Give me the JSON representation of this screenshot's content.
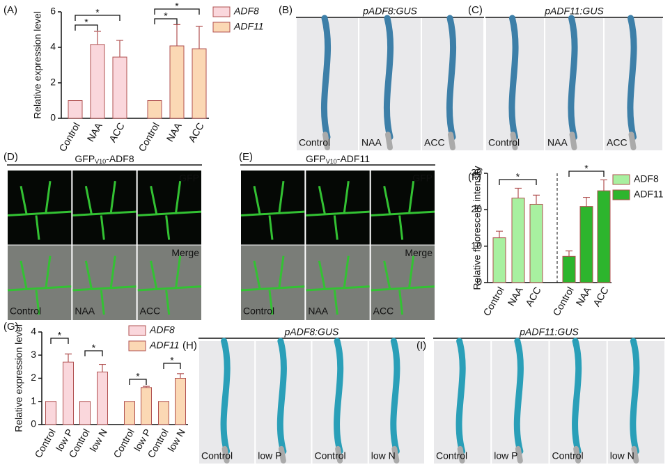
{
  "chart_data": [
    {
      "type": "bar",
      "panel": "(A)",
      "ylabel": "Relative expression level",
      "categories": [
        "Control",
        "NAA",
        "ACC",
        "Control",
        "NAA",
        "ACC"
      ],
      "ylim": [
        0,
        6
      ],
      "yticks": [
        0,
        2,
        4,
        6
      ],
      "series": [
        {
          "name": "ADF8",
          "color": "#fad7dc",
          "values": [
            1,
            4.16,
            3.45,
            null,
            null,
            null
          ],
          "errors": [
            0,
            0.74,
            0.94,
            null,
            null,
            null
          ]
        },
        {
          "name": "ADF11",
          "color": "#fbd8b4",
          "values": [
            null,
            null,
            null,
            1,
            4.08,
            3.92
          ],
          "errors": [
            null,
            null,
            null,
            0,
            1.2,
            1.26
          ]
        }
      ],
      "annotations": [
        "*",
        "*",
        "*",
        "*"
      ]
    },
    {
      "type": "bar",
      "panel": "(F)",
      "ylabel": "Relative fluorescent intensity",
      "categories": [
        "Control",
        "NAA",
        "ACC",
        "Control",
        "NAA",
        "ACC"
      ],
      "ylim": [
        0,
        30
      ],
      "yticks": [
        0,
        10,
        20,
        30
      ],
      "series": [
        {
          "name": "ADF8",
          "color": "#a8f0a0",
          "values": [
            12.3,
            23.2,
            21.5,
            null,
            null,
            null
          ],
          "errors": [
            1.8,
            2.7,
            2.5,
            null,
            null,
            null
          ]
        },
        {
          "name": "ADF11",
          "color": "#2db52d",
          "values": [
            null,
            null,
            null,
            7.2,
            20.9,
            25.2
          ],
          "errors": [
            null,
            null,
            null,
            1.5,
            2.5,
            3
          ]
        }
      ],
      "annotations": [
        "*",
        "*"
      ]
    },
    {
      "type": "bar",
      "panel": "(G)",
      "ylabel": "Relative expression level",
      "categories": [
        "Control",
        "low P",
        "Control",
        "low N",
        "Control",
        "low P",
        "Control",
        "low N"
      ],
      "ylim": [
        0,
        4
      ],
      "yticks": [
        0,
        1,
        2,
        3,
        4
      ],
      "series": [
        {
          "name": "ADF8",
          "color": "#fad7dc",
          "values": [
            1,
            2.7,
            1,
            2.27,
            null,
            null,
            null,
            null
          ],
          "errors": [
            0,
            0.35,
            0,
            0.33,
            null,
            null,
            null,
            null
          ]
        },
        {
          "name": "ADF11",
          "color": "#fbd8b4",
          "values": [
            null,
            null,
            null,
            null,
            1,
            1.6,
            1,
            2.0
          ],
          "errors": [
            null,
            null,
            null,
            null,
            0,
            0.05,
            0,
            0.2
          ]
        }
      ],
      "annotations": [
        "*",
        "*",
        "*",
        "*"
      ]
    }
  ],
  "image_panels": [
    {
      "panel": "(B)",
      "title": "pADF8:GUS",
      "labels": [
        "Control",
        "NAA",
        "ACC"
      ]
    },
    {
      "panel": "(C)",
      "title": "pADF11:GUS",
      "labels": [
        "Control",
        "NAA",
        "ACC"
      ]
    },
    {
      "panel": "(D)",
      "title": [
        "GFP",
        "V10",
        "-ADF8"
      ],
      "channels": [
        "GFP",
        "Merge"
      ],
      "labels": [
        "Control",
        "NAA",
        "ACC"
      ]
    },
    {
      "panel": "(E)",
      "title": [
        "GFP",
        "V10",
        "-ADF11"
      ],
      "channels": [
        "GFP",
        "Merge"
      ],
      "labels": [
        "Control",
        "NAA",
        "ACC"
      ]
    },
    {
      "panel": "(H)",
      "title": "pADF8:GUS",
      "labels": [
        "Control",
        "low P",
        "Control",
        "low N"
      ]
    },
    {
      "panel": "(I)",
      "title": "pADF11:GUS",
      "labels": [
        "Control",
        "low P",
        "Control",
        "low N"
      ]
    }
  ]
}
